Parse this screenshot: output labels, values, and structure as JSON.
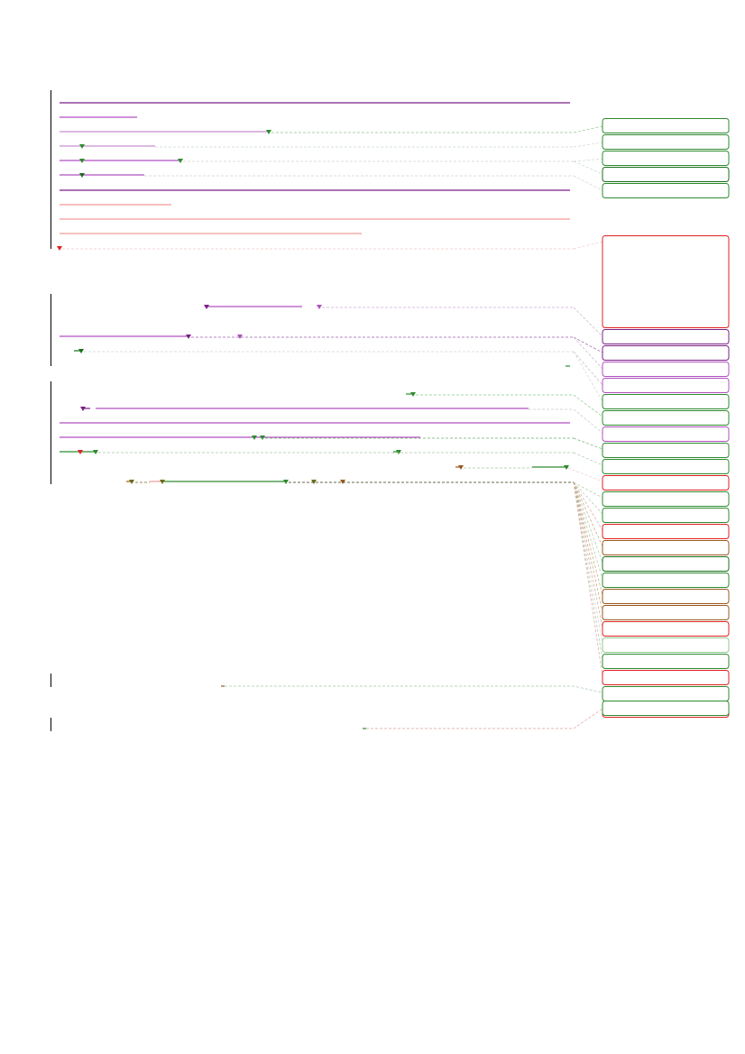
{
  "document": {
    "type": "annotated-text-page",
    "colors": {
      "purple": "#7b1f86",
      "violet": "#b04fc0",
      "lavender": "#c98fd1",
      "green": "#2e8b2e",
      "dark_green": "#1a6f1a",
      "light_green": "#8fc98f",
      "red": "#e02020",
      "salmon": "#f39a9a",
      "brown": "#9a5a20",
      "olive": "#6b6b1a",
      "margin_bar": "#000000",
      "leader": "#a8c8a8"
    },
    "annotation_boxes": [
      {
        "color": "green"
      },
      {
        "color": "green"
      },
      {
        "color": "green"
      },
      {
        "color": "dark_green"
      },
      {
        "color": "green"
      },
      {
        "color": "red"
      },
      {
        "color": "purple"
      },
      {
        "color": "purple"
      },
      {
        "color": "violet"
      },
      {
        "color": "violet"
      },
      {
        "color": "green"
      },
      {
        "color": "green"
      },
      {
        "color": "violet"
      },
      {
        "color": "green"
      },
      {
        "color": "green"
      },
      {
        "color": "red"
      },
      {
        "color": "green"
      },
      {
        "color": "green"
      },
      {
        "color": "red"
      },
      {
        "color": "brown"
      },
      {
        "color": "green"
      },
      {
        "color": "green"
      },
      {
        "color": "brown"
      },
      {
        "color": "brown"
      },
      {
        "color": "red"
      },
      {
        "color": "light_green"
      },
      {
        "color": "green"
      },
      {
        "color": "red"
      },
      {
        "color": "green"
      },
      {
        "color": "red"
      },
      {
        "color": "green"
      }
    ]
  }
}
